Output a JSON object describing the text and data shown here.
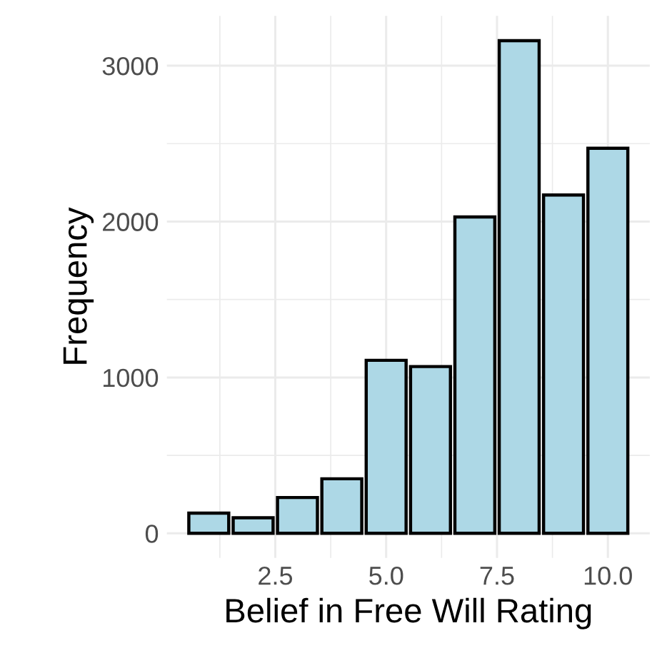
{
  "chart_data": {
    "type": "bar",
    "xlabel": "Belief in Free Will Rating",
    "ylabel": "Frequency",
    "x": [
      1,
      2,
      3,
      4,
      5,
      6,
      7,
      8,
      9,
      10
    ],
    "values": [
      130,
      100,
      230,
      350,
      1110,
      1070,
      2030,
      3160,
      2170,
      2470
    ],
    "color": "#add8e6",
    "xlim": [
      0.055,
      10.945
    ],
    "xticks": [
      2.5,
      {
        "value": 5,
        "label": "5.0"
      },
      7.5,
      {
        "value": 10,
        "label": "10.0"
      }
    ],
    "ylim": [
      -158,
      3320
    ],
    "yticks": [
      0,
      1000,
      2000,
      3000
    ],
    "grid": true
  }
}
